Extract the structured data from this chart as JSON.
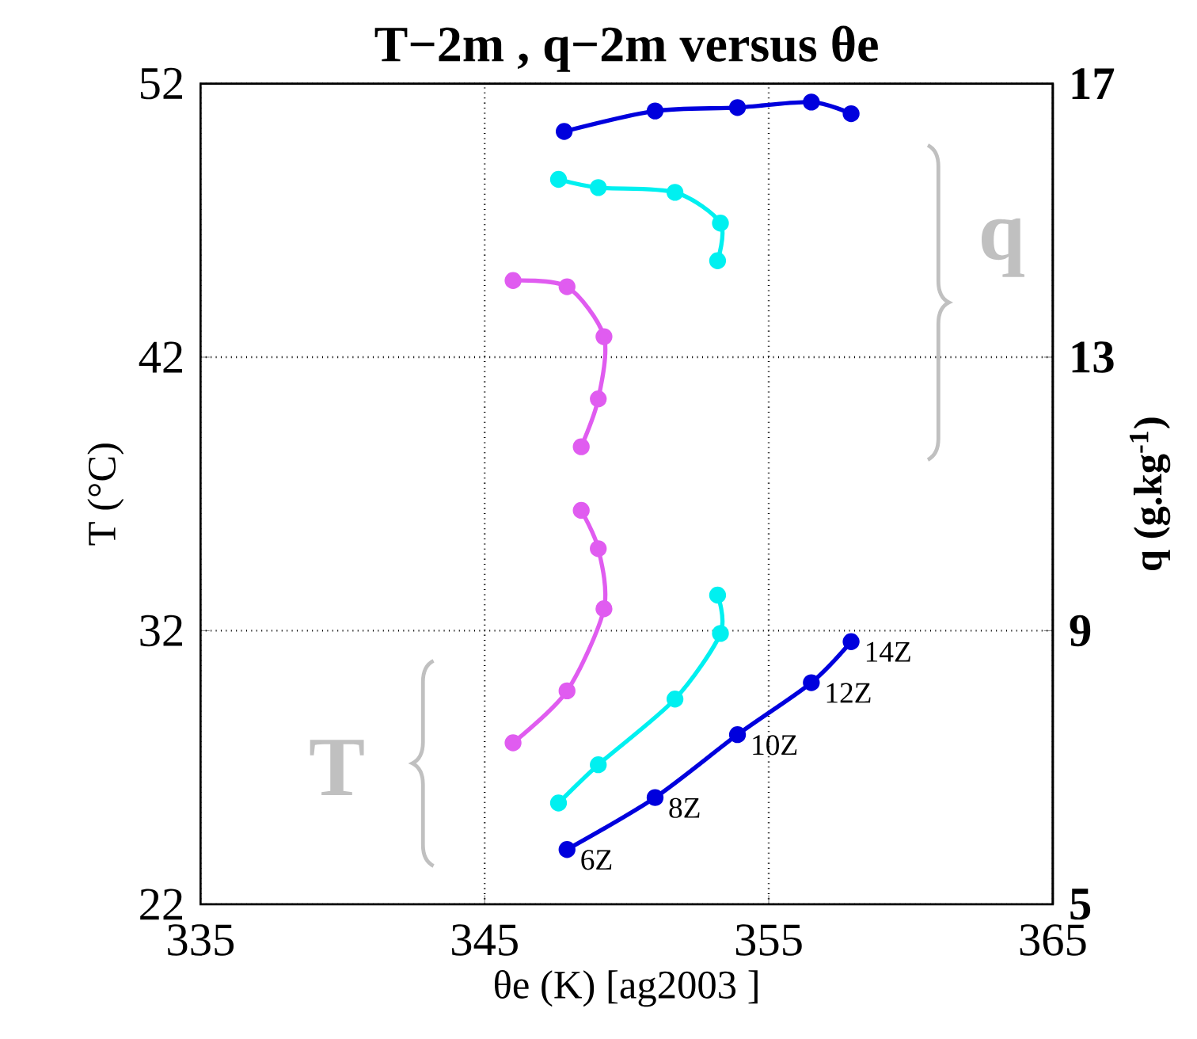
{
  "chart_data": {
    "type": "line",
    "title": "T−2m , q−2m versus θe",
    "xlabel": "θe (K)   [ag2003 ]",
    "ylabel": "T (°C)",
    "y2label": "q (g.kg$^{-1}$)",
    "series": [
      {
        "color": "#0000dd",
        "x": [
          347.9,
          351.0,
          353.9,
          356.5,
          357.9
        ],
        "values": [
          24.0,
          25.9,
          28.2,
          30.1,
          31.6
        ]
      },
      {
        "color": "#00f0f0",
        "x": [
          347.6,
          349.0,
          351.7,
          353.3,
          353.2
        ],
        "values": [
          25.7,
          27.1,
          29.5,
          31.9,
          33.3
        ]
      },
      {
        "color": "#e05cf0",
        "x": [
          346.0,
          347.9,
          349.2,
          349.0,
          348.4
        ],
        "values": [
          27.9,
          29.8,
          32.8,
          35.0,
          36.4
        ]
      },
      {
        "color": "#0000dd",
        "axis": "y2",
        "x": [
          347.8,
          351.0,
          353.9,
          356.5,
          357.9
        ],
        "values": [
          16.3,
          16.6,
          16.65,
          16.73,
          16.56
        ]
      },
      {
        "color": "#00f0f0",
        "axis": "y2",
        "x": [
          347.6,
          349.0,
          351.7,
          353.3,
          353.2
        ],
        "values": [
          15.6,
          15.48,
          15.41,
          14.96,
          14.41
        ]
      },
      {
        "color": "#e05cf0",
        "axis": "y2",
        "x": [
          346.0,
          347.9,
          349.2,
          349.0,
          348.4
        ],
        "values": [
          14.12,
          14.03,
          13.3,
          12.39,
          11.69
        ]
      }
    ],
    "xlim": [
      335,
      365
    ],
    "xticks": [
      335,
      345,
      355,
      365
    ],
    "ylim": [
      22,
      52
    ],
    "yticks": [
      22,
      32,
      42,
      52
    ],
    "y2lim": [
      5,
      17
    ],
    "y2ticks": [
      5,
      9,
      13,
      17
    ],
    "grid": true,
    "marker": "circle",
    "annotations": [
      {
        "text": "6Z",
        "x": 347.9,
        "y": 24.0
      },
      {
        "text": "8Z",
        "x": 351.0,
        "y": 25.9
      },
      {
        "text": "10Z",
        "x": 353.9,
        "y": 28.2
      },
      {
        "text": "12Z",
        "x": 356.5,
        "y": 30.1
      },
      {
        "text": "14Z",
        "x": 357.9,
        "y": 31.6
      },
      "T",
      "q"
    ]
  }
}
